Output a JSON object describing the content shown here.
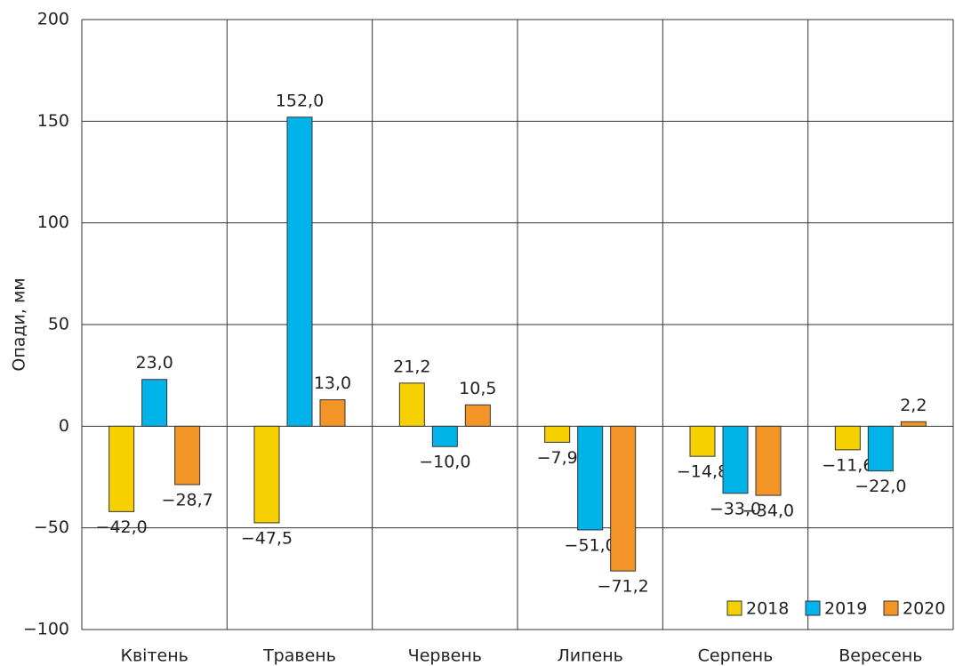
{
  "chart_data": {
    "type": "bar",
    "y_label": "Опади, мм",
    "categories": [
      "Квітень",
      "Травень",
      "Червень",
      "Липень",
      "Серпень",
      "Вересень"
    ],
    "series": [
      {
        "name": "2018",
        "color": "#f7d000",
        "values": [
          -42.0,
          -47.5,
          21.2,
          -7.9,
          -14.8,
          -11.6
        ],
        "value_labels": [
          "−42,0",
          "−47,5",
          "21,2",
          "−7,9",
          "−14,8",
          "−11,6"
        ]
      },
      {
        "name": "2019",
        "color": "#00b4ea",
        "values": [
          23.0,
          152.0,
          -10.0,
          -51.0,
          -33.0,
          -22.0
        ],
        "value_labels": [
          "23,0",
          "152,0",
          "−10,0",
          "−51,0",
          "−33,0",
          "−22,0"
        ]
      },
      {
        "name": "2020",
        "color": "#f39526",
        "values": [
          -28.7,
          13.0,
          10.5,
          -71.2,
          -34.0,
          2.2
        ],
        "value_labels": [
          "−28,7",
          "13,0",
          "10,5",
          "−71,2",
          "−34,0",
          "2,2"
        ]
      }
    ],
    "ylim": [
      -100,
      200
    ],
    "yticks": [
      {
        "value": -100,
        "label": "−100"
      },
      {
        "value": -50,
        "label": "−50"
      },
      0,
      50,
      100,
      150,
      200
    ],
    "grid": true,
    "legend": "lower right"
  }
}
